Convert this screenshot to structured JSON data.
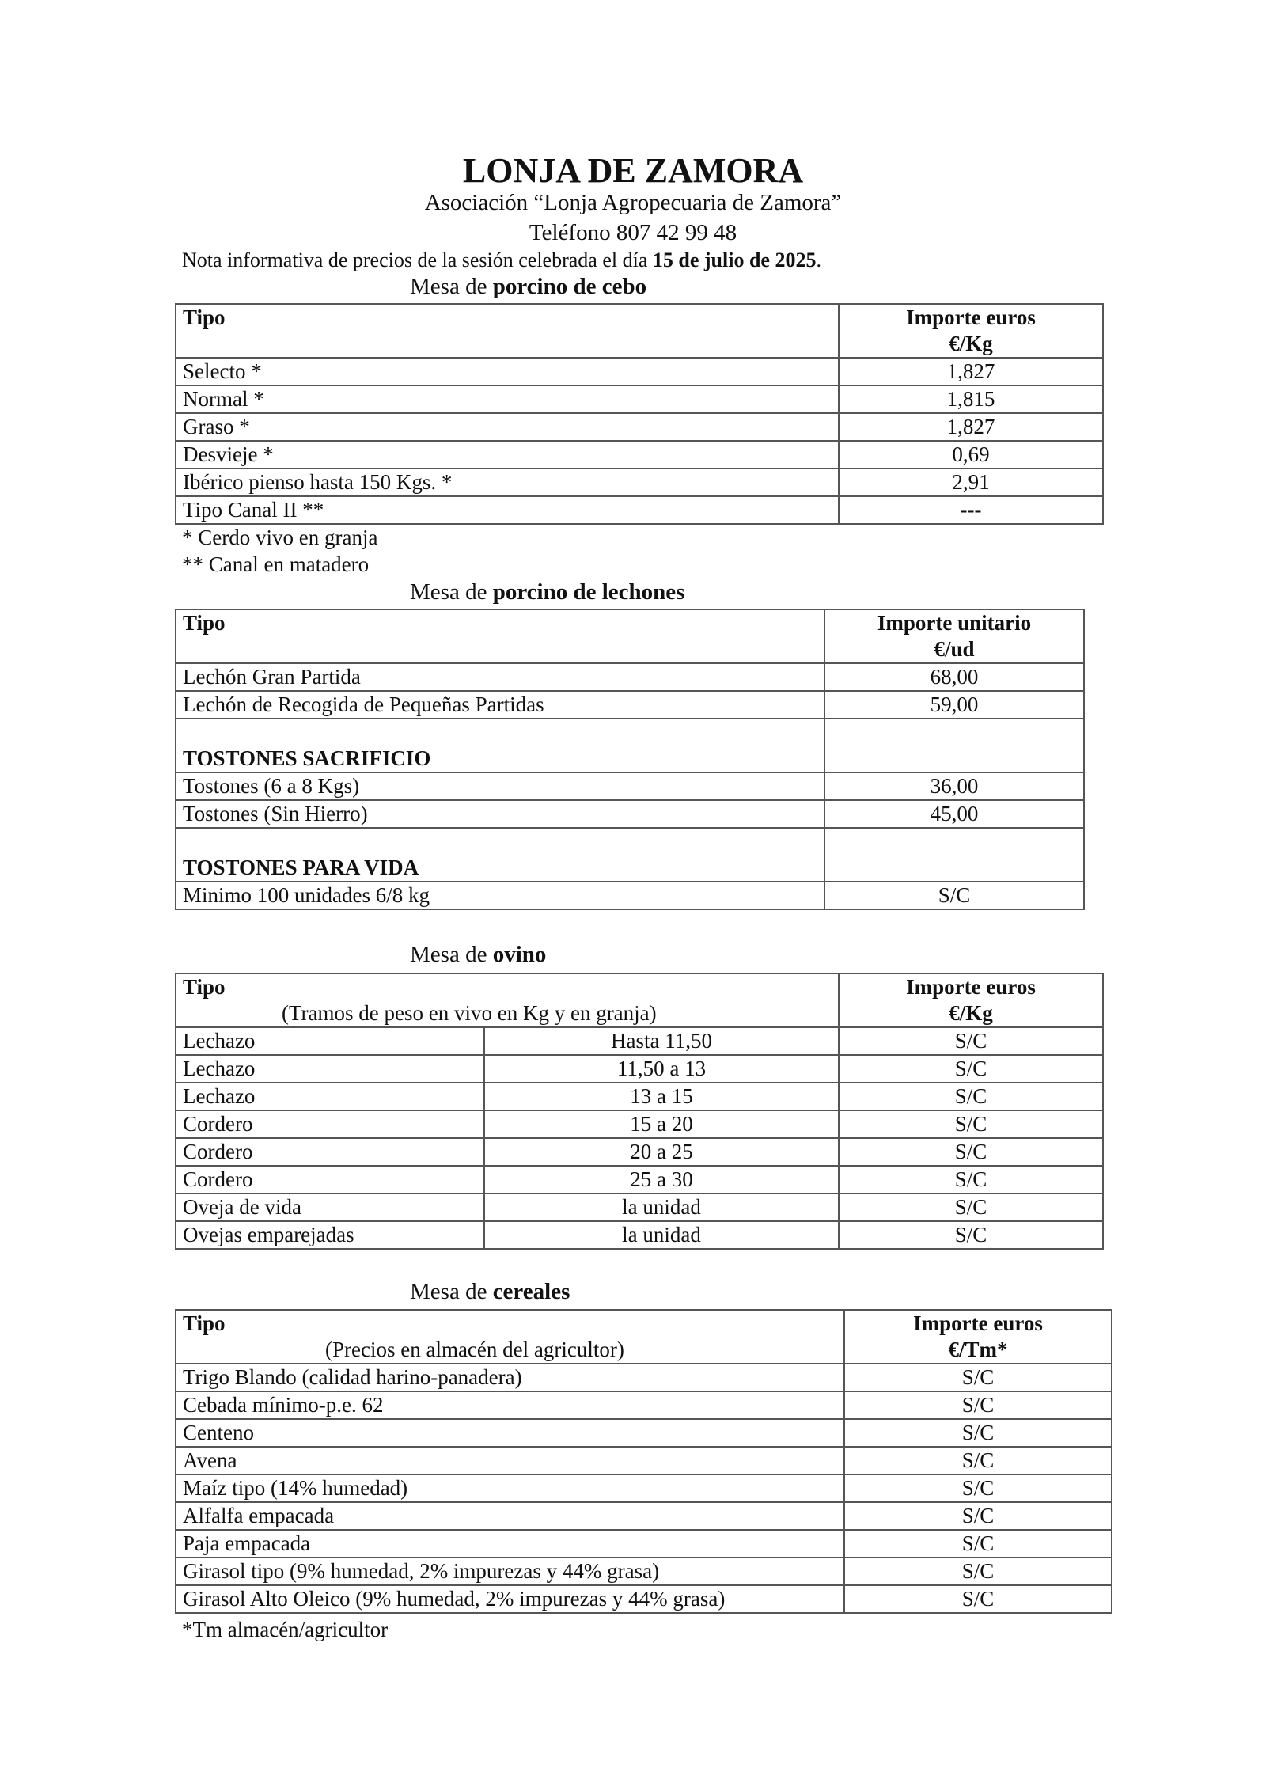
{
  "header": {
    "title": "LONJA DE ZAMORA",
    "association": "Asociación “Lonja Agropecuaria de Zamora”",
    "phone": "Teléfono 807 42 99 48",
    "note_prefix": "Nota informativa de precios de la sesión celebrada el día ",
    "note_date": "15 de julio de 2025",
    "note_suffix": "."
  },
  "cebo": {
    "mesa_prefix": "Mesa de ",
    "mesa_name": "porcino de cebo",
    "col_tipo": "Tipo",
    "col_price_1": "Importe euros",
    "col_price_2": "€/Kg",
    "rows": [
      {
        "tipo": "Selecto *",
        "price": "1,827"
      },
      {
        "tipo": "Normal *",
        "price": "1,815"
      },
      {
        "tipo": "Graso *",
        "price": "1,827"
      },
      {
        "tipo": "Desvieje *",
        "price": "0,69"
      },
      {
        "tipo": "Ibérico pienso hasta 150 Kgs. *",
        "price": "2,91"
      },
      {
        "tipo": "Tipo Canal II **",
        "price": "---"
      }
    ],
    "footnotes": [
      "* Cerdo vivo en granja",
      "** Canal en matadero"
    ]
  },
  "lechones": {
    "mesa_prefix": "Mesa de ",
    "mesa_name": "porcino de lechones",
    "col_tipo": "Tipo",
    "col_price_1": "Importe unitario",
    "col_price_2": "€/ud",
    "rows": [
      {
        "tipo": "Lechón Gran Partida",
        "price": "68,00"
      },
      {
        "tipo": "Lechón de Recogida de Pequeñas Partidas",
        "price": "59,00"
      },
      {
        "tipo": "TOSTONES SACRIFICIO",
        "price": ""
      },
      {
        "tipo": "Tostones (6 a 8 Kgs)",
        "price": "36,00"
      },
      {
        "tipo": "Tostones  (Sin Hierro)",
        "price": "45,00"
      },
      {
        "tipo": "TOSTONES PARA VIDA",
        "price": ""
      },
      {
        "tipo": "Minimo 100 unidades 6/8 kg",
        "price": "S/C"
      }
    ]
  },
  "ovino": {
    "mesa_prefix": "Mesa de ",
    "mesa_name": "ovino",
    "col_tipo": "Tipo",
    "col_sub": "(Tramos de peso en vivo en Kg y en granja)",
    "col_price_1": "Importe euros",
    "col_price_2": "€/Kg",
    "rows": [
      {
        "tipo": "Lechazo",
        "tramo": "Hasta 11,50",
        "price": "S/C"
      },
      {
        "tipo": "Lechazo",
        "tramo": "11,50 a 13",
        "price": "S/C"
      },
      {
        "tipo": "Lechazo",
        "tramo": "13 a 15",
        "price": "S/C"
      },
      {
        "tipo": "Cordero",
        "tramo": "15 a 20",
        "price": "S/C"
      },
      {
        "tipo": "Cordero",
        "tramo": "20 a 25",
        "price": "S/C"
      },
      {
        "tipo": "Cordero",
        "tramo": "25 a 30",
        "price": "S/C"
      },
      {
        "tipo": "Oveja de vida",
        "tramo": "la unidad",
        "price": "S/C"
      },
      {
        "tipo": "Ovejas emparejadas",
        "tramo": "la unidad",
        "price": "S/C"
      }
    ]
  },
  "cereales": {
    "mesa_prefix": "Mesa de ",
    "mesa_name": "cereales",
    "col_tipo": "Tipo",
    "col_sub": "(Precios en almacén del agricultor)",
    "col_price_1": "Importe euros",
    "col_price_2": "€/Tm*",
    "rows": [
      {
        "tipo": "Trigo Blando (calidad harino-panadera)",
        "price": "S/C"
      },
      {
        "tipo": "Cebada mínimo-p.e. 62",
        "price": "S/C"
      },
      {
        "tipo": "Centeno",
        "price": "S/C"
      },
      {
        "tipo": "Avena",
        "price": "S/C"
      },
      {
        "tipo": "Maíz tipo (14% humedad)",
        "price": "S/C"
      },
      {
        "tipo": "Alfalfa empacada",
        "price": "S/C"
      },
      {
        "tipo": "Paja empacada",
        "price": "S/C"
      },
      {
        "tipo": "Girasol tipo (9% humedad, 2% impurezas y 44% grasa)",
        "price": "S/C"
      },
      {
        "tipo": "Girasol Alto Oleico (9% humedad, 2% impurezas y 44% grasa)",
        "price": "S/C"
      }
    ],
    "footnote": "*Tm almacén/agricultor"
  }
}
